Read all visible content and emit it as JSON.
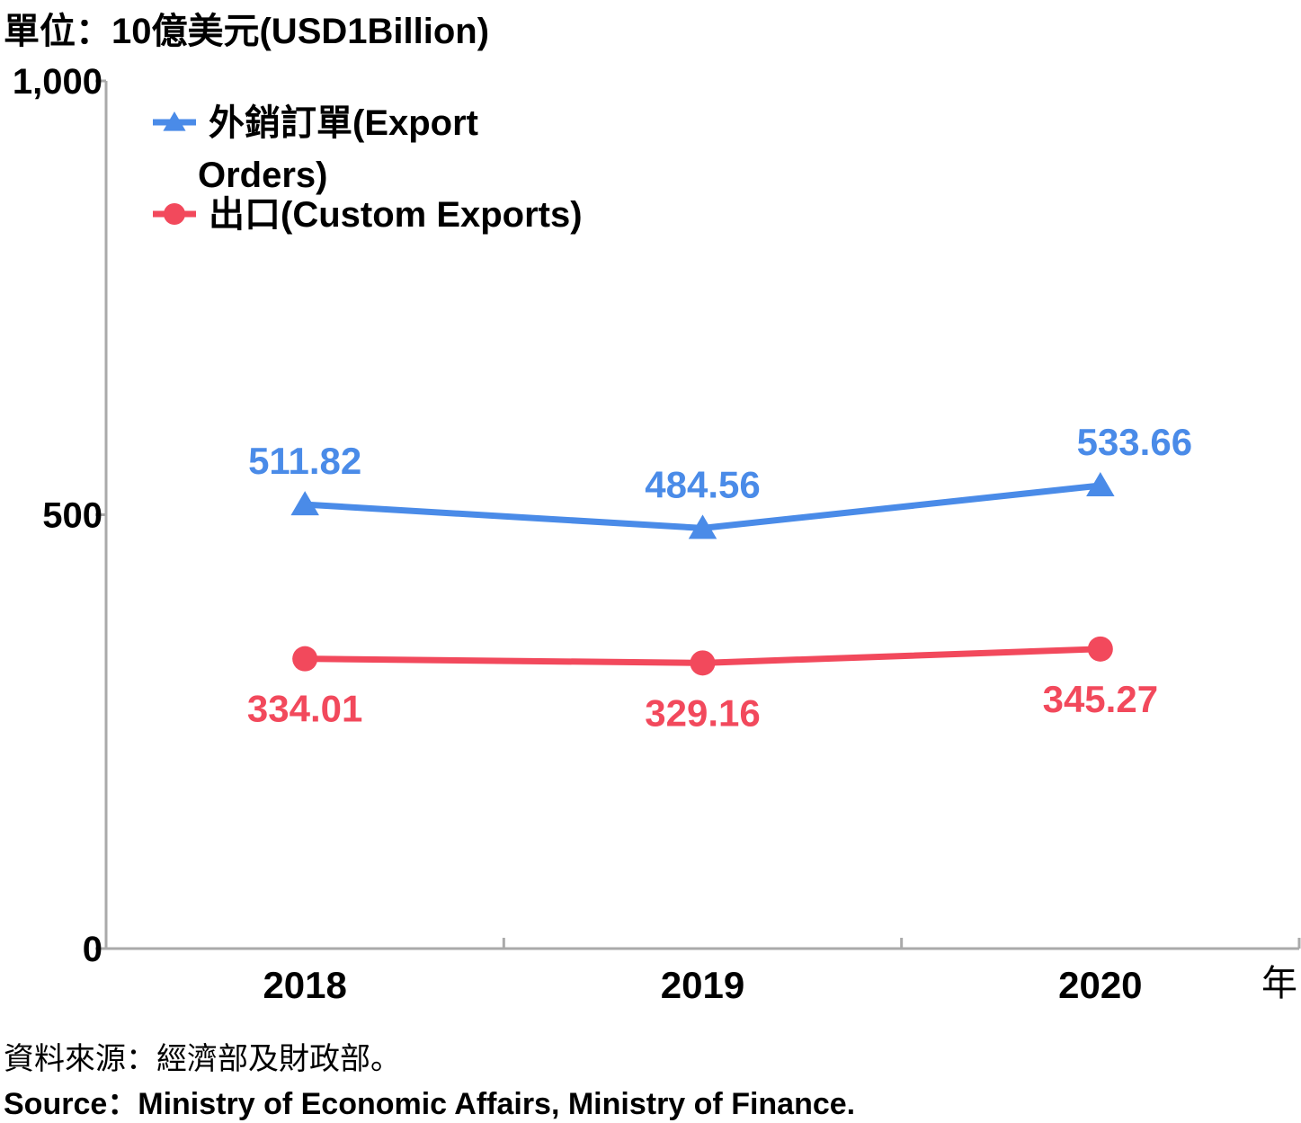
{
  "unit_label": "單位：10億美元(USD1Billion)",
  "x_unit_label": "年",
  "source": {
    "zh": "資料來源：經濟部及財政部。",
    "en": "Source：Ministry of Economic Affairs, Ministry of Finance."
  },
  "colors": {
    "export_orders": "#4a8be8",
    "custom_exports": "#f2495c",
    "axis": "#aaaaaa",
    "text": "#000000"
  },
  "chart_data": {
    "type": "line",
    "categories": [
      "2018",
      "2019",
      "2020"
    ],
    "ylim": [
      0,
      1000
    ],
    "yticks": [
      "0",
      "500",
      "1,000"
    ],
    "ytick_values": [
      0,
      500,
      1000
    ],
    "grid": false,
    "legend_position": "top-left",
    "series": [
      {
        "key": "export_orders",
        "name_lines": [
          "外銷訂單(Export",
          "Orders)"
        ],
        "marker": "triangle",
        "values": [
          511.82,
          484.56,
          533.66
        ],
        "labels": [
          "511.82",
          "484.56",
          "533.66"
        ],
        "label_position": "above"
      },
      {
        "key": "custom_exports",
        "name_lines": [
          "出口(Custom Exports)"
        ],
        "marker": "circle",
        "values": [
          334.01,
          329.16,
          345.27
        ],
        "labels": [
          "334.01",
          "329.16",
          "345.27"
        ],
        "label_position": "below"
      }
    ]
  }
}
